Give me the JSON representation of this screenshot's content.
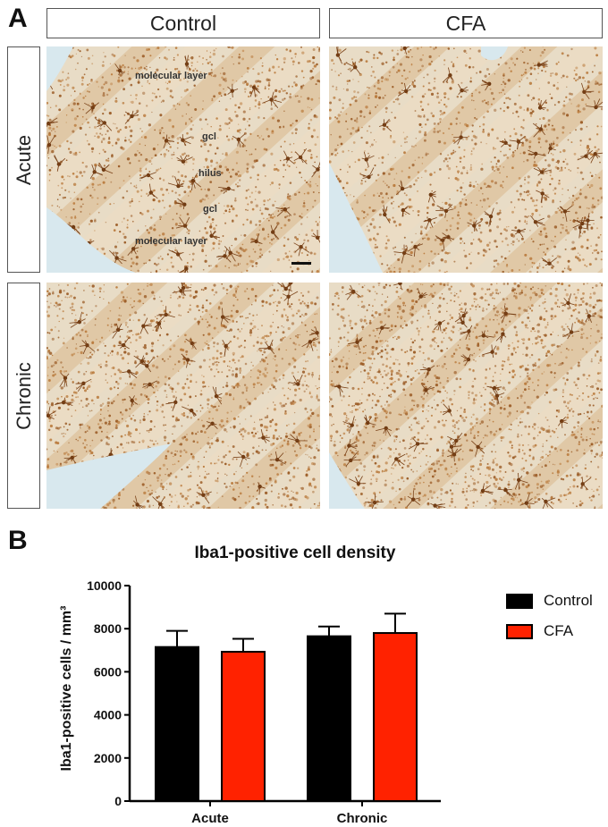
{
  "panel_a_label": "A",
  "panel_b_label": "B",
  "columns": [
    "Control",
    "CFA"
  ],
  "rows": [
    "Acute",
    "Chronic"
  ],
  "layer_labels": {
    "molecular_top": "molecular layer",
    "gcl_top": "gcl",
    "hilus": "hilus",
    "gcl_bottom": "gcl",
    "molecular_bottom": "molecular layer"
  },
  "colors": {
    "control": "#000000",
    "cfa": "#ff2200",
    "stain": "#a0602a",
    "tissue_bg": "#e8dcc6",
    "void": "#d8e8ee"
  },
  "chart_data": {
    "type": "bar",
    "title": "Iba1-positive cell density",
    "ylabel": "Iba1-positive cells / mm³",
    "xlabel": "",
    "categories": [
      "Acute",
      "Chronic"
    ],
    "ylim": [
      0,
      10000
    ],
    "yticks": [
      0,
      2000,
      4000,
      6000,
      8000,
      10000
    ],
    "series": [
      {
        "name": "Control",
        "color": "#000000",
        "values": [
          7150,
          7650
        ],
        "errors": [
          750,
          450
        ]
      },
      {
        "name": "CFA",
        "color": "#ff2200",
        "values": [
          6930,
          7800
        ],
        "errors": [
          600,
          900
        ]
      }
    ],
    "legend_position": "top-right",
    "grid": false
  }
}
